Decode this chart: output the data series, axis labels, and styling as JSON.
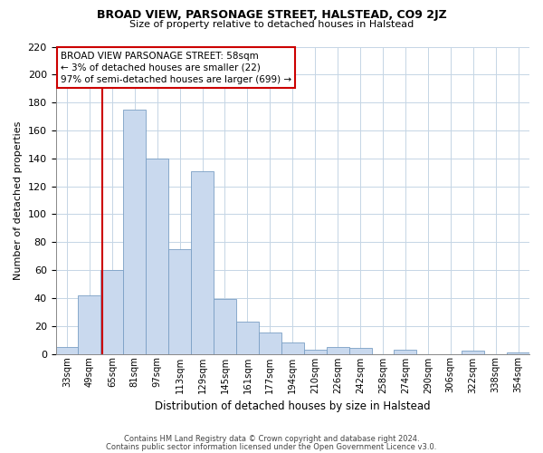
{
  "title": "BROAD VIEW, PARSONAGE STREET, HALSTEAD, CO9 2JZ",
  "subtitle": "Size of property relative to detached houses in Halstead",
  "xlabel": "Distribution of detached houses by size in Halstead",
  "ylabel": "Number of detached properties",
  "footnote1": "Contains HM Land Registry data © Crown copyright and database right 2024.",
  "footnote2": "Contains public sector information licensed under the Open Government Licence v3.0.",
  "categories": [
    "33sqm",
    "49sqm",
    "65sqm",
    "81sqm",
    "97sqm",
    "113sqm",
    "129sqm",
    "145sqm",
    "161sqm",
    "177sqm",
    "194sqm",
    "210sqm",
    "226sqm",
    "242sqm",
    "258sqm",
    "274sqm",
    "290sqm",
    "306sqm",
    "322sqm",
    "338sqm",
    "354sqm"
  ],
  "values": [
    5,
    42,
    60,
    175,
    140,
    75,
    131,
    39,
    23,
    15,
    8,
    3,
    5,
    4,
    0,
    3,
    0,
    0,
    2,
    0,
    1
  ],
  "bar_color": "#c9d9ee",
  "bar_edge_color": "#7a9fc4",
  "property_line_color": "#cc0000",
  "annotation_text": "BROAD VIEW PARSONAGE STREET: 58sqm\n← 3% of detached houses are smaller (22)\n97% of semi-detached houses are larger (699) →",
  "annotation_box_color": "#ffffff",
  "annotation_box_edge": "#cc0000",
  "ylim": [
    0,
    220
  ],
  "yticks": [
    0,
    20,
    40,
    60,
    80,
    100,
    120,
    140,
    160,
    180,
    200,
    220
  ],
  "background_color": "#ffffff",
  "grid_color": "#c5d5e5"
}
